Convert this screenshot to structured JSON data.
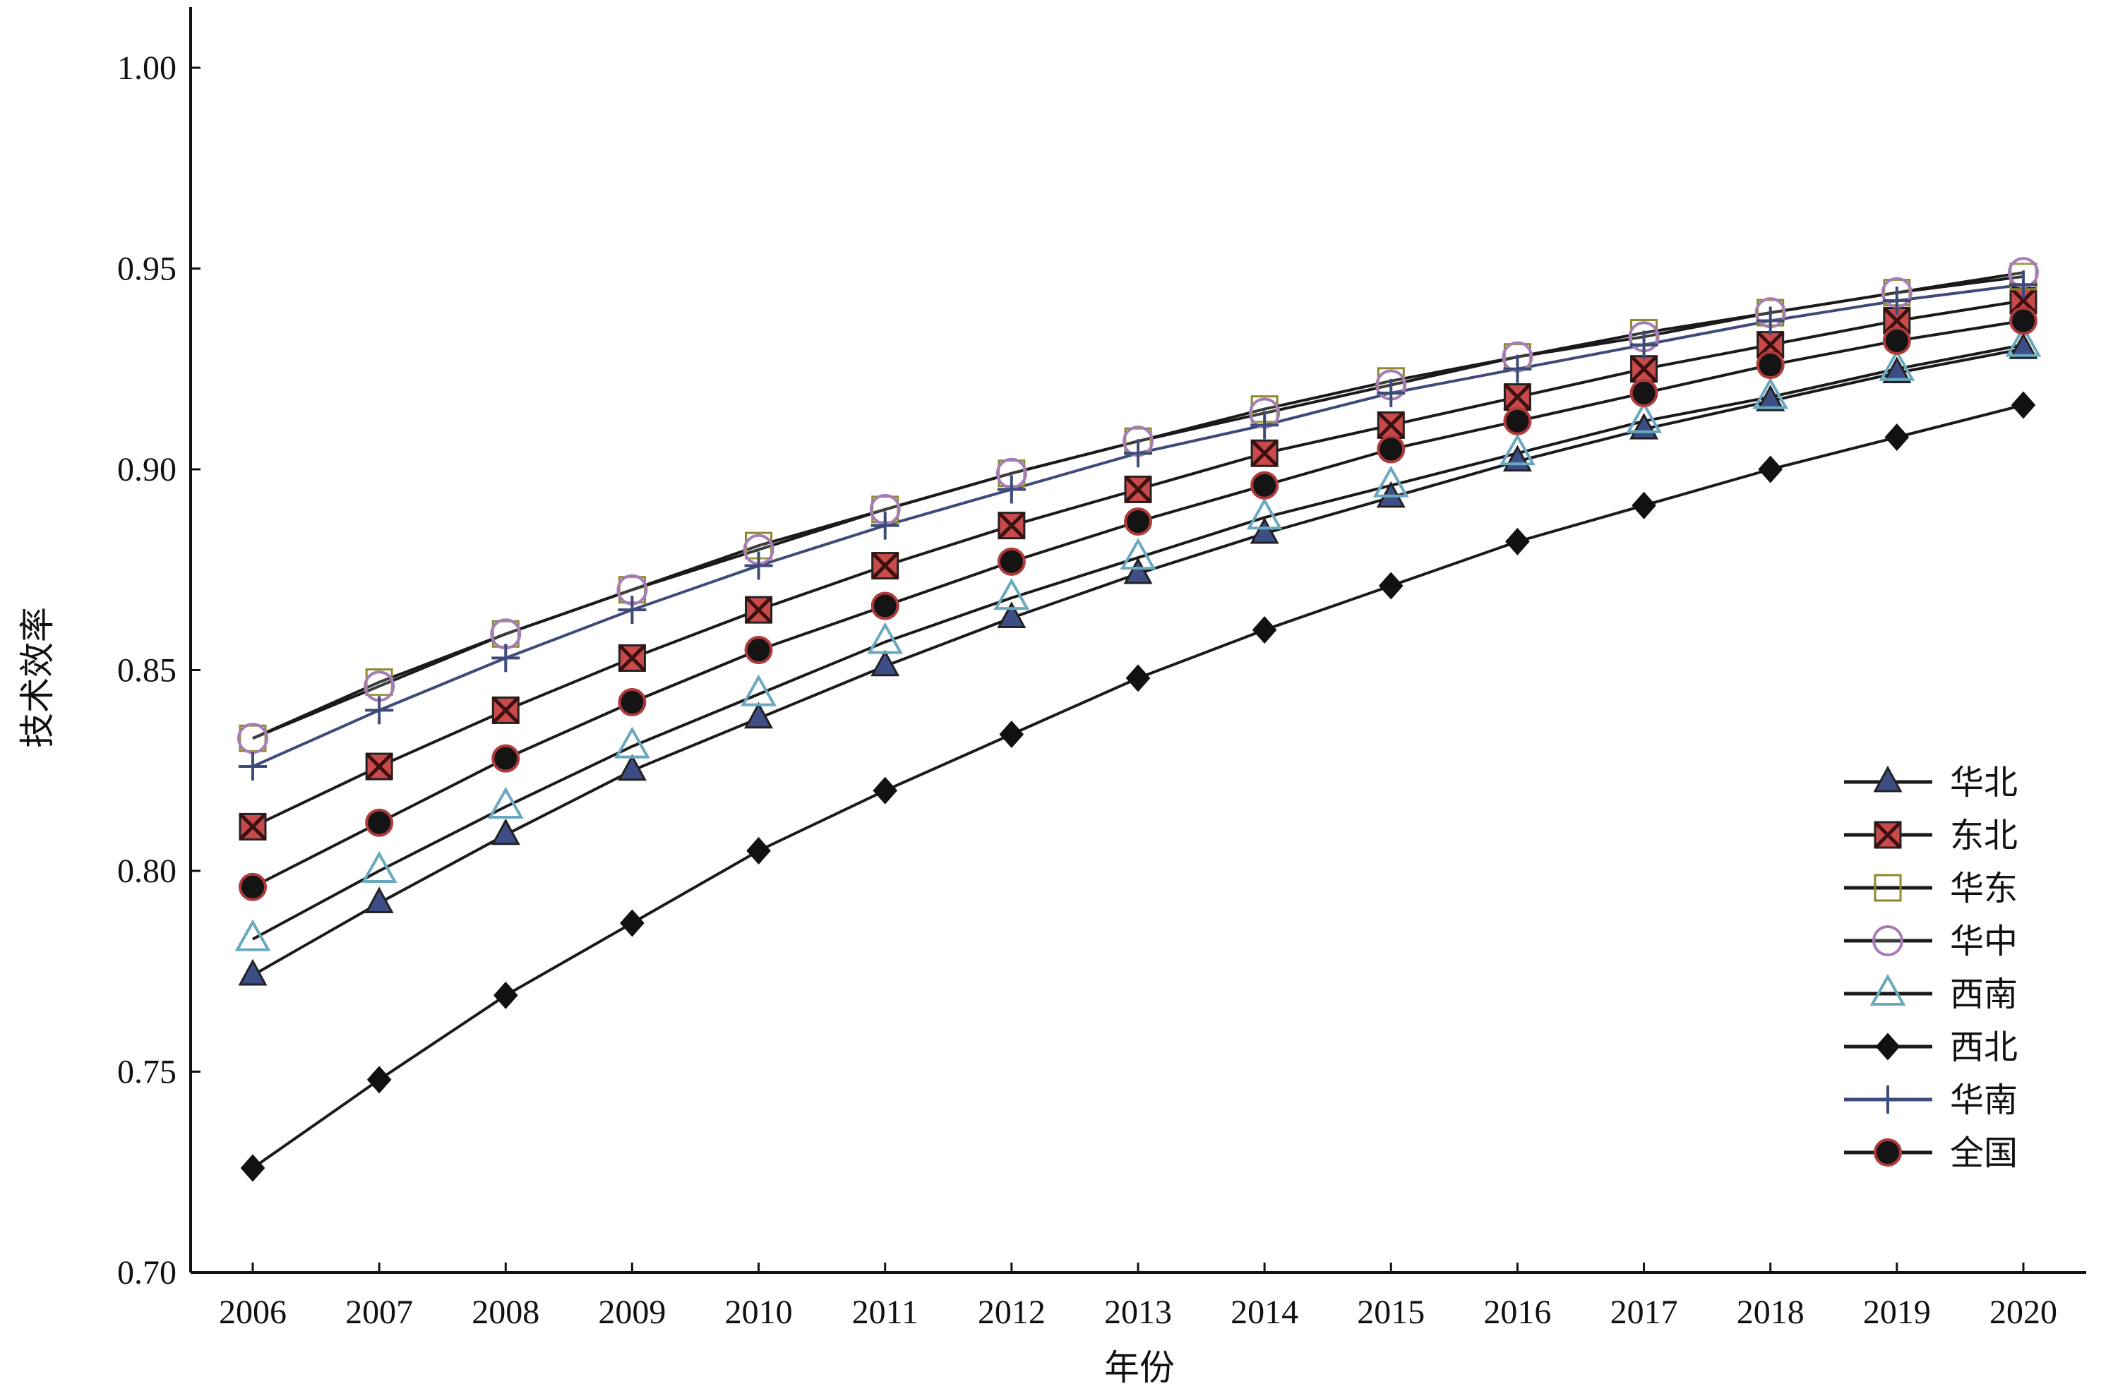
{
  "chart_data": {
    "type": "line",
    "title": "",
    "xlabel": "年份",
    "ylabel": "技术效率",
    "x": [
      2006,
      2007,
      2008,
      2009,
      2010,
      2011,
      2012,
      2013,
      2014,
      2015,
      2016,
      2017,
      2018,
      2019,
      2020
    ],
    "ylim": [
      0.7,
      1.0
    ],
    "yticks": [
      "0.70",
      "0.75",
      "0.80",
      "0.85",
      "0.90",
      "0.95",
      "1.00"
    ],
    "legend_position": "right",
    "grid": false,
    "series": [
      {
        "name": "华北",
        "marker": "triangle-filled",
        "color": "#1a1a1a",
        "marker_color": "#3d4e86",
        "values": [
          0.774,
          0.792,
          0.809,
          0.825,
          0.838,
          0.851,
          0.863,
          0.874,
          0.884,
          0.893,
          0.902,
          0.91,
          0.917,
          0.924,
          0.93
        ]
      },
      {
        "name": "东北",
        "marker": "square-x",
        "color": "#1a1a1a",
        "marker_color": "#c94a4a",
        "values": [
          0.811,
          0.826,
          0.84,
          0.853,
          0.865,
          0.876,
          0.886,
          0.895,
          0.904,
          0.911,
          0.918,
          0.925,
          0.931,
          0.937,
          0.942
        ]
      },
      {
        "name": "华东",
        "marker": "square-open",
        "color": "#1a1a1a",
        "marker_color": "#8a8a2a",
        "values": [
          0.833,
          0.847,
          0.859,
          0.87,
          0.881,
          0.89,
          0.899,
          0.907,
          0.915,
          0.922,
          0.928,
          0.934,
          0.939,
          0.944,
          0.948
        ]
      },
      {
        "name": "华中",
        "marker": "circle-open",
        "color": "#1a1a1a",
        "marker_color": "#a77ab8",
        "values": [
          0.833,
          0.846,
          0.859,
          0.87,
          0.88,
          0.89,
          0.899,
          0.907,
          0.914,
          0.921,
          0.928,
          0.933,
          0.939,
          0.944,
          0.949
        ]
      },
      {
        "name": "西南",
        "marker": "triangle-open",
        "color": "#1a1a1a",
        "marker_color": "#6aa8c0",
        "values": [
          0.783,
          0.8,
          0.816,
          0.831,
          0.844,
          0.857,
          0.868,
          0.878,
          0.888,
          0.896,
          0.904,
          0.912,
          0.918,
          0.925,
          0.931
        ]
      },
      {
        "name": "西北",
        "marker": "diamond-filled",
        "color": "#1a1a1a",
        "marker_color": "#111111",
        "values": [
          0.726,
          0.748,
          0.769,
          0.787,
          0.805,
          0.82,
          0.834,
          0.848,
          0.86,
          0.871,
          0.882,
          0.891,
          0.9,
          0.908,
          0.916
        ]
      },
      {
        "name": "华南",
        "marker": "plus",
        "color": "#3d4a7a",
        "marker_color": "#3d4a7a",
        "values": [
          0.826,
          0.84,
          0.853,
          0.865,
          0.876,
          0.886,
          0.895,
          0.904,
          0.911,
          0.919,
          0.925,
          0.931,
          0.937,
          0.942,
          0.946
        ]
      },
      {
        "name": "全国",
        "marker": "circle-filled",
        "color": "#1a1a1a",
        "marker_color": "#b03a3a",
        "values": [
          0.796,
          0.812,
          0.828,
          0.842,
          0.855,
          0.866,
          0.877,
          0.887,
          0.896,
          0.905,
          0.912,
          0.919,
          0.926,
          0.932,
          0.937
        ]
      }
    ]
  }
}
